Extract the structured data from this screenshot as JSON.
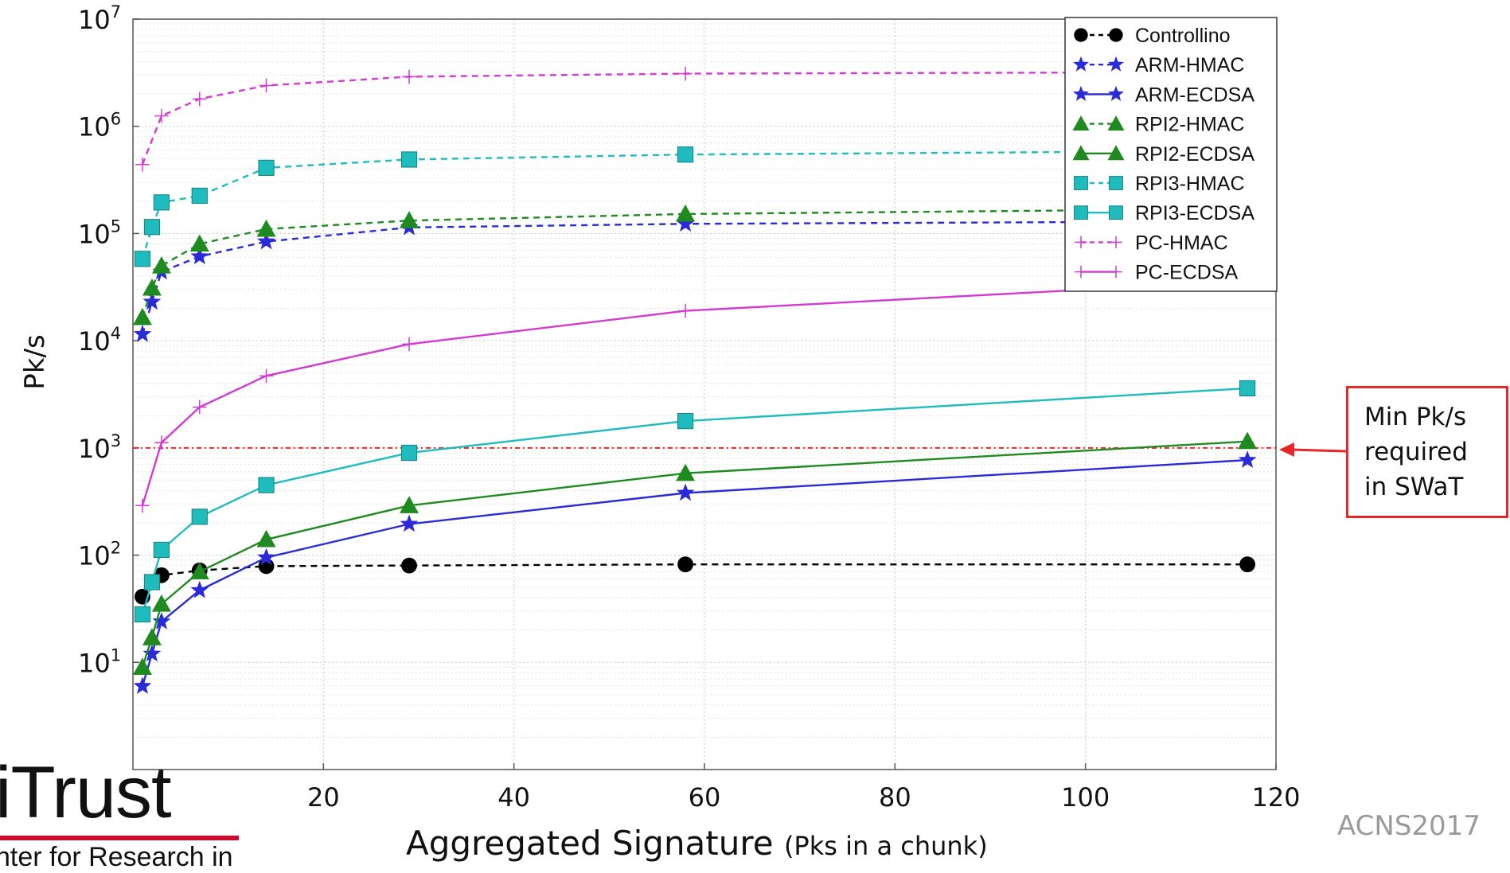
{
  "chart_data": {
    "type": "line",
    "xlabel_main": "Aggregated Signature",
    "xlabel_sub": "(Pks in a chunk)",
    "ylabel": "Pk/s",
    "xlim": [
      0,
      120
    ],
    "ylim_exponent": [
      0,
      7
    ],
    "yscale": "log",
    "grid": true,
    "legend_position": "top-right",
    "x_ticks": [
      "20",
      "40",
      "60",
      "80",
      "100",
      "120"
    ],
    "y_ticks": [
      {
        "exp": 1,
        "base": "10",
        "sup": "1"
      },
      {
        "exp": 2,
        "base": "10",
        "sup": "2"
      },
      {
        "exp": 3,
        "base": "10",
        "sup": "3"
      },
      {
        "exp": 4,
        "base": "10",
        "sup": "4"
      },
      {
        "exp": 5,
        "base": "10",
        "sup": "5"
      },
      {
        "exp": 6,
        "base": "10",
        "sup": "6"
      },
      {
        "exp": 7,
        "base": "10",
        "sup": "7"
      }
    ],
    "threshold": {
      "value": 1000,
      "color": "#e8262a"
    },
    "series": [
      {
        "name": "Controllino",
        "color": "#000000",
        "dash": true,
        "marker": "circle",
        "x": [
          1,
          3,
          7,
          14,
          29,
          58,
          117
        ],
        "y": [
          41,
          65,
          72,
          79,
          80,
          82,
          82
        ]
      },
      {
        "name": "ARM-HMAC",
        "color": "#2a2ad8",
        "dash": true,
        "marker": "star",
        "x": [
          1,
          2,
          3,
          7,
          14,
          29,
          58,
          117
        ],
        "y": [
          11500,
          23000,
          44000,
          61000,
          84000,
          114000,
          123000,
          130000
        ]
      },
      {
        "name": "ARM-ECDSA",
        "color": "#2a2ad8",
        "dash": false,
        "marker": "star",
        "x": [
          1,
          2,
          3,
          7,
          14,
          29,
          58,
          117
        ],
        "y": [
          6,
          12,
          24,
          47,
          95,
          195,
          380,
          770
        ]
      },
      {
        "name": "RPI2-HMAC",
        "color": "#1f8a1f",
        "dash": true,
        "marker": "triangle",
        "x": [
          1,
          2,
          3,
          7,
          14,
          29,
          58,
          117
        ],
        "y": [
          16500,
          31000,
          50000,
          80000,
          110000,
          132000,
          152000,
          170000
        ]
      },
      {
        "name": "RPI2-ECDSA",
        "color": "#1f8a1f",
        "dash": false,
        "marker": "triangle",
        "x": [
          1,
          2,
          3,
          7,
          14,
          29,
          58,
          117
        ],
        "y": [
          9,
          17,
          35,
          70,
          140,
          290,
          580,
          1150
        ]
      },
      {
        "name": "RPI3-HMAC",
        "color": "#1ebcbc",
        "dash": true,
        "marker": "square",
        "x": [
          1,
          2,
          3,
          7,
          14,
          29,
          58,
          117
        ],
        "y": [
          58000,
          115000,
          195000,
          225000,
          410000,
          490000,
          545000,
          590000
        ]
      },
      {
        "name": "RPI3-ECDSA",
        "color": "#1ebcbc",
        "dash": false,
        "marker": "square",
        "x": [
          1,
          2,
          3,
          7,
          14,
          29,
          58,
          117
        ],
        "y": [
          28,
          56,
          112,
          228,
          450,
          900,
          1780,
          3600
        ]
      },
      {
        "name": "PC-HMAC",
        "color": "#d13bd1",
        "dash": true,
        "marker": "plus",
        "x": [
          1,
          3,
          7,
          14,
          29,
          58,
          117
        ],
        "y": [
          440000,
          1250000,
          1800000,
          2400000,
          2900000,
          3100000,
          3200000
        ]
      },
      {
        "name": "PC-ECDSA",
        "color": "#d13bd1",
        "dash": false,
        "marker": "plus",
        "x": [
          1,
          3,
          7,
          14,
          29,
          58,
          117
        ],
        "y": [
          290,
          1120,
          2400,
          4700,
          9300,
          19000,
          36000
        ]
      }
    ]
  },
  "callout": {
    "line1": "Min Pk/s",
    "line2": "required",
    "line3": "in SWaT"
  },
  "logo": {
    "name": "iTrust",
    "subtitle": "nter for Research in"
  },
  "corner_label": "ACNS2017"
}
